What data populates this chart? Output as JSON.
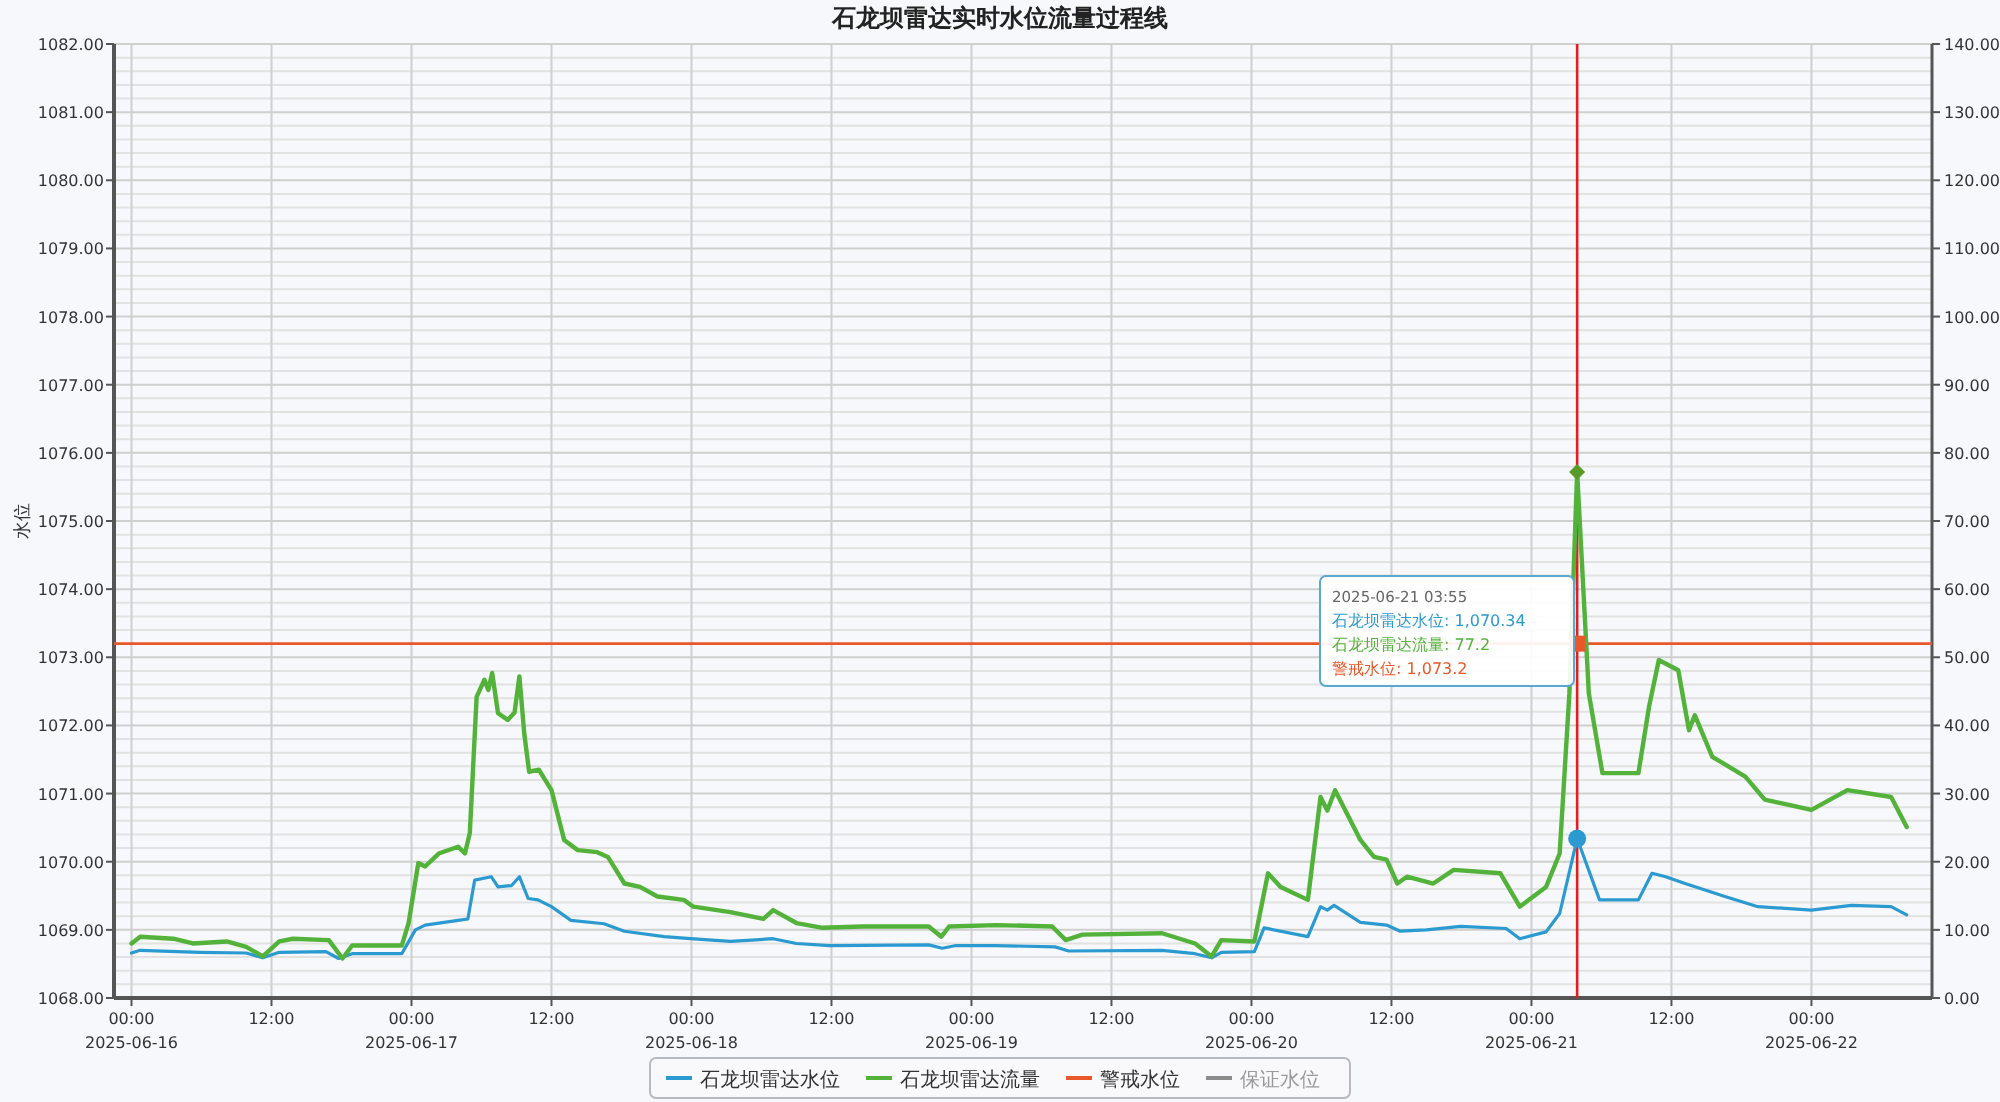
{
  "chart_data": {
    "type": "line",
    "title": "石龙坝雷达实时水位流量过程线",
    "ylabel": "水位",
    "xlim": [
      "2025-06-15T22:30",
      "2025-06-22T10:20"
    ],
    "xticks": [
      {
        "value": "2025-06-16T00:00",
        "label": "00:00\n2025-06-16"
      },
      {
        "value": "2025-06-16T12:00",
        "label": "12:00"
      },
      {
        "value": "2025-06-17T00:00",
        "label": "00:00\n2025-06-17"
      },
      {
        "value": "2025-06-17T12:00",
        "label": "12:00"
      },
      {
        "value": "2025-06-18T00:00",
        "label": "00:00\n2025-06-18"
      },
      {
        "value": "2025-06-18T12:00",
        "label": "12:00"
      },
      {
        "value": "2025-06-19T00:00",
        "label": "00:00\n2025-06-19"
      },
      {
        "value": "2025-06-19T12:00",
        "label": "12:00"
      },
      {
        "value": "2025-06-20T00:00",
        "label": "00:00\n2025-06-20"
      },
      {
        "value": "2025-06-20T12:00",
        "label": "12:00"
      },
      {
        "value": "2025-06-21T00:00",
        "label": "00:00\n2025-06-21"
      },
      {
        "value": "2025-06-21T12:00",
        "label": "12:00"
      },
      {
        "value": "2025-06-22T00:00",
        "label": "00:00\n2025-06-22"
      }
    ],
    "ylim": [
      1068,
      1082
    ],
    "yticks": [
      {
        "value": 1068,
        "label": "1068.00"
      },
      {
        "value": 1069,
        "label": "1069.00"
      },
      {
        "value": 1070,
        "label": "1070.00"
      },
      {
        "value": 1071,
        "label": "1071.00"
      },
      {
        "value": 1072,
        "label": "1072.00"
      },
      {
        "value": 1073,
        "label": "1073.00"
      },
      {
        "value": 1074,
        "label": "1074.00"
      },
      {
        "value": 1075,
        "label": "1075.00"
      },
      {
        "value": 1076,
        "label": "1076.00"
      },
      {
        "value": 1077,
        "label": "1077.00"
      },
      {
        "value": 1078,
        "label": "1078.00"
      },
      {
        "value": 1079,
        "label": "1079.00"
      },
      {
        "value": 1080,
        "label": "1080.00"
      },
      {
        "value": 1081,
        "label": "1081.00"
      },
      {
        "value": 1082,
        "label": "1082.00"
      }
    ],
    "y2lim": [
      0,
      140
    ],
    "y2ticks": [
      {
        "value": 0,
        "label": "0.00"
      },
      {
        "value": 10,
        "label": "10.00"
      },
      {
        "value": 20,
        "label": "20.00"
      },
      {
        "value": 30,
        "label": "30.00"
      },
      {
        "value": 40,
        "label": "40.00"
      },
      {
        "value": 50,
        "label": "50.00"
      },
      {
        "value": 60,
        "label": "60.00"
      },
      {
        "value": 70,
        "label": "70.00"
      },
      {
        "value": 80,
        "label": "80.00"
      },
      {
        "value": 90,
        "label": "90.00"
      },
      {
        "value": 100,
        "label": "100.00"
      },
      {
        "value": 110,
        "label": "110.00"
      },
      {
        "value": 120,
        "label": "120.00"
      },
      {
        "value": 130,
        "label": "130.00"
      },
      {
        "value": 140,
        "label": "140.00"
      }
    ],
    "grid": true,
    "legend": "bottom",
    "marker": "none",
    "line_style": "solid",
    "series": [
      {
        "name": "石龙坝雷达水位",
        "color": "#2b9ad0",
        "x": [
          "2025-06-16T00:00",
          "2025-06-16T00:45",
          "2025-06-16T05:50",
          "2025-06-16T09:50",
          "2025-06-16T11:15",
          "2025-06-16T12:40",
          "2025-06-16T16:40",
          "2025-06-16T17:45",
          "2025-06-16T18:55",
          "2025-06-16T23:10",
          "2025-06-17T00:20",
          "2025-06-17T01:10",
          "2025-06-17T04:00",
          "2025-06-17T04:50",
          "2025-06-17T05:25",
          "2025-06-17T06:50",
          "2025-06-17T07:25",
          "2025-06-17T08:35",
          "2025-06-17T09:15",
          "2025-06-17T10:00",
          "2025-06-17T10:50",
          "2025-06-17T12:00",
          "2025-06-17T13:40",
          "2025-06-17T16:30",
          "2025-06-17T18:15",
          "2025-06-17T21:40",
          "2025-06-17T23:55",
          "2025-06-18T03:20",
          "2025-06-18T07:00",
          "2025-06-18T09:00",
          "2025-06-18T11:50",
          "2025-06-18T20:20",
          "2025-06-18T21:30",
          "2025-06-18T22:40",
          "2025-06-19T02:05",
          "2025-06-19T07:10",
          "2025-06-19T08:20",
          "2025-06-19T16:20",
          "2025-06-19T19:10",
          "2025-06-19T20:35",
          "2025-06-19T21:25",
          "2025-06-20T00:15",
          "2025-06-20T01:05",
          "2025-06-20T04:50",
          "2025-06-20T05:55",
          "2025-06-20T06:30",
          "2025-06-20T07:05",
          "2025-06-20T09:20",
          "2025-06-20T11:35",
          "2025-06-20T12:45",
          "2025-06-20T15:00",
          "2025-06-20T17:55",
          "2025-06-20T21:50",
          "2025-06-20T23:00",
          "2025-06-21T01:15",
          "2025-06-21T02:25",
          "2025-06-21T03:55",
          "2025-06-21T05:50",
          "2025-06-21T09:10",
          "2025-06-21T10:20",
          "2025-06-21T11:30",
          "2025-06-21T13:10",
          "2025-06-21T16:35",
          "2025-06-21T19:25",
          "2025-06-22T00:00",
          "2025-06-22T03:25",
          "2025-06-22T06:50",
          "2025-06-22T08:10"
        ],
        "values": [
          1068.66,
          1068.7,
          1068.67,
          1068.66,
          1068.59,
          1068.67,
          1068.68,
          1068.58,
          1068.65,
          1068.65,
          1069.0,
          1069.07,
          1069.14,
          1069.16,
          1069.73,
          1069.78,
          1069.63,
          1069.65,
          1069.78,
          1069.46,
          1069.44,
          1069.34,
          1069.14,
          1069.09,
          1068.98,
          1068.9,
          1068.87,
          1068.83,
          1068.87,
          1068.8,
          1068.77,
          1068.78,
          1068.73,
          1068.77,
          1068.77,
          1068.75,
          1068.69,
          1068.7,
          1068.65,
          1068.59,
          1068.67,
          1068.68,
          1069.03,
          1068.9,
          1069.34,
          1069.29,
          1069.36,
          1069.11,
          1069.07,
          1068.98,
          1069.0,
          1069.05,
          1069.02,
          1068.87,
          1068.97,
          1069.24,
          1070.34,
          1069.44,
          1069.44,
          1069.83,
          1069.78,
          1069.68,
          1069.49,
          1069.34,
          1069.29,
          1069.36,
          1069.34,
          1069.22
        ]
      },
      {
        "name": "石龙坝雷达流量",
        "color": "#52b23a",
        "axis": "y2",
        "x": [
          "2025-06-16T00:00",
          "2025-06-16T00:45",
          "2025-06-16T03:35",
          "2025-06-16T05:15",
          "2025-06-16T08:10",
          "2025-06-16T09:50",
          "2025-06-16T11:15",
          "2025-06-16T12:40",
          "2025-06-16T13:50",
          "2025-06-16T16:55",
          "2025-06-16T18:05",
          "2025-06-16T18:55",
          "2025-06-16T23:10",
          "2025-06-16T23:45",
          "2025-06-17T00:35",
          "2025-06-17T01:10",
          "2025-06-17T02:20",
          "2025-06-17T04:00",
          "2025-06-17T04:35",
          "2025-06-17T05:00",
          "2025-06-17T05:35",
          "2025-06-17T06:15",
          "2025-06-17T06:35",
          "2025-06-17T06:55",
          "2025-06-17T07:25",
          "2025-06-17T08:15",
          "2025-06-17T08:50",
          "2025-06-17T09:15",
          "2025-06-17T09:40",
          "2025-06-17T10:05",
          "2025-06-17T10:55",
          "2025-06-17T12:00",
          "2025-06-17T13:05",
          "2025-06-17T14:15",
          "2025-06-17T15:55",
          "2025-06-17T16:50",
          "2025-06-17T18:15",
          "2025-06-17T19:35",
          "2025-06-17T21:05",
          "2025-06-17T23:20",
          "2025-06-18T00:10",
          "2025-06-18T03:20",
          "2025-06-18T06:10",
          "2025-06-18T07:00",
          "2025-06-18T09:00",
          "2025-06-18T11:15",
          "2025-06-18T14:40",
          "2025-06-18T20:20",
          "2025-06-18T21:25",
          "2025-06-18T22:05",
          "2025-06-19T02:05",
          "2025-06-19T06:55",
          "2025-06-19T08:05",
          "2025-06-19T09:30",
          "2025-06-19T16:20",
          "2025-06-19T19:10",
          "2025-06-19T20:35",
          "2025-06-19T21:25",
          "2025-06-20T00:15",
          "2025-06-20T01:25",
          "2025-06-20T02:30",
          "2025-06-20T04:50",
          "2025-06-20T05:55",
          "2025-06-20T06:30",
          "2025-06-20T07:10",
          "2025-06-20T09:20",
          "2025-06-20T10:30",
          "2025-06-20T11:35",
          "2025-06-20T12:30",
          "2025-06-20T13:20",
          "2025-06-20T15:35",
          "2025-06-20T17:20",
          "2025-06-20T21:20",
          "2025-06-20T23:00",
          "2025-06-21T01:15",
          "2025-06-21T02:25",
          "2025-06-21T03:15",
          "2025-06-21T03:55",
          "2025-06-21T04:55",
          "2025-06-21T06:05",
          "2025-06-21T09:10",
          "2025-06-21T10:05",
          "2025-06-21T10:55",
          "2025-06-21T12:35",
          "2025-06-21T13:30",
          "2025-06-21T14:00",
          "2025-06-21T15:30",
          "2025-06-21T18:20",
          "2025-06-21T20:00",
          "2025-06-22T00:00",
          "2025-06-22T03:05",
          "2025-06-22T06:50",
          "2025-06-22T08:10"
        ],
        "values": [
          8.0,
          9.0,
          8.7,
          8.0,
          8.3,
          7.5,
          6.1,
          8.3,
          8.7,
          8.5,
          5.8,
          7.7,
          7.7,
          11.0,
          19.8,
          19.3,
          21.2,
          22.2,
          21.2,
          24.2,
          44.2,
          46.7,
          45.2,
          47.7,
          41.8,
          40.8,
          41.9,
          47.2,
          38.8,
          33.2,
          33.5,
          30.5,
          23.2,
          21.7,
          21.4,
          20.7,
          16.8,
          16.3,
          14.9,
          14.4,
          13.4,
          12.6,
          11.6,
          12.9,
          11.0,
          10.3,
          10.5,
          10.5,
          9.0,
          10.5,
          10.7,
          10.5,
          8.5,
          9.3,
          9.5,
          8.0,
          6.1,
          8.5,
          8.3,
          18.3,
          16.3,
          14.4,
          29.5,
          27.5,
          30.5,
          23.2,
          20.7,
          20.3,
          16.8,
          17.8,
          16.8,
          18.8,
          18.3,
          13.4,
          16.3,
          21.2,
          44.7,
          77.2,
          44.7,
          33.0,
          33.0,
          42.8,
          49.6,
          48.1,
          39.3,
          41.5,
          35.4,
          32.5,
          29.1,
          27.6,
          30.5,
          29.5,
          25.1
        ]
      },
      {
        "name": "保证水位",
        "color": "#8c8c8c"
      }
    ],
    "ref_lines": [
      {
        "axis": "y",
        "value": 1073.2,
        "label": "警戒水位",
        "color": "#e8582a"
      },
      {
        "axis": "x",
        "value": "2025-06-21T03:55",
        "color": "#e02020"
      }
    ],
    "annotations": [
      "2025-06-21 03:55",
      "石龙坝雷达水位: 1,070.34",
      "石龙坝雷达流量: 77.2",
      "警戒水位: 1,073.2"
    ]
  }
}
